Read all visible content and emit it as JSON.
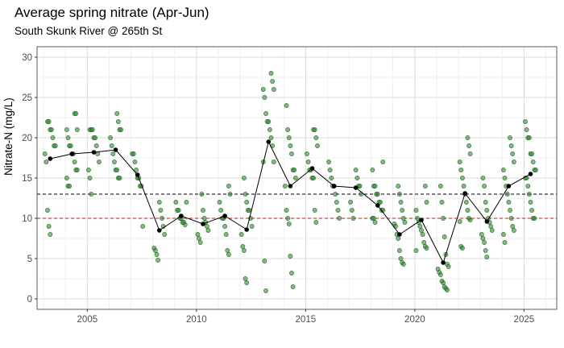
{
  "chart_data": {
    "type": "scatter",
    "title": "Average spring nitrate (Apr-Jun)",
    "subtitle": "South Skunk River @ 265th St",
    "xlabel": "",
    "ylabel": "Nitrate-N (mg/L)",
    "xlim": [
      2002.7,
      2026.5
    ],
    "ylim": [
      -1.3,
      31.3
    ],
    "xticks": [
      2005,
      2010,
      2015,
      2020,
      2025
    ],
    "yticks": [
      0,
      5,
      10,
      15,
      20,
      25,
      30
    ],
    "grid": true,
    "legend": "none",
    "colors": {
      "points": "#2e8b2e",
      "points_edge": "#1f5f1f",
      "mean": "#000000",
      "ref_black": "#000000",
      "ref_red": "#b22222"
    },
    "reference_lines": [
      {
        "y": 13,
        "color": "#000000",
        "style": "dashed"
      },
      {
        "y": 10,
        "color": "#b22222",
        "style": "dashed"
      }
    ],
    "samples": [
      {
        "year": 2003,
        "values": [
          22,
          22,
          21,
          21,
          20,
          19,
          19,
          18,
          17,
          11,
          9,
          8
        ]
      },
      {
        "year": 2004,
        "values": [
          23,
          23,
          21,
          21,
          20,
          19,
          19,
          18,
          18,
          17,
          16,
          16,
          15,
          14,
          14
        ]
      },
      {
        "year": 2005,
        "values": [
          21,
          21,
          21,
          20,
          20,
          19,
          18,
          17,
          16,
          15,
          13
        ]
      },
      {
        "year": 2006,
        "values": [
          23,
          22,
          21,
          21,
          20,
          19,
          18,
          17,
          16,
          16,
          15,
          15
        ]
      },
      {
        "year": 2007,
        "values": [
          18,
          18,
          17,
          16,
          15,
          15,
          14,
          14,
          9
        ]
      },
      {
        "year": 2008,
        "values": [
          12,
          11,
          10,
          9,
          8,
          6.3,
          6,
          5.5,
          4.8
        ]
      },
      {
        "year": 2009,
        "values": [
          12,
          12,
          11,
          11,
          10,
          10,
          9.5,
          9.5,
          9.2
        ]
      },
      {
        "year": 2010,
        "values": [
          13,
          11,
          10,
          9.5,
          9,
          8.5,
          8,
          7.5,
          7
        ]
      },
      {
        "year": 2011,
        "values": [
          14,
          13,
          12,
          11,
          10,
          10,
          9,
          8,
          6,
          5.5
        ]
      },
      {
        "year": 2012,
        "values": [
          15,
          13,
          12,
          11,
          11,
          10,
          9,
          8,
          6.5,
          6,
          2.5,
          2
        ]
      },
      {
        "year": 2013,
        "values": [
          28,
          27,
          26,
          26,
          25,
          23,
          22,
          22,
          21,
          20,
          19,
          17,
          17,
          4.7,
          1
        ]
      },
      {
        "year": 2014,
        "values": [
          24,
          21,
          20,
          19,
          18,
          16,
          16,
          15,
          14,
          11,
          10,
          9.3,
          5.3,
          3.2,
          1.5
        ]
      },
      {
        "year": 2015,
        "values": [
          21,
          21,
          20,
          19,
          18,
          17,
          16,
          16,
          15,
          15,
          11,
          9.5
        ]
      },
      {
        "year": 2016,
        "values": [
          17,
          16,
          15,
          14,
          14,
          13,
          12,
          11,
          10
        ]
      },
      {
        "year": 2017,
        "values": [
          16,
          15,
          14,
          14,
          13,
          12,
          11,
          10
        ]
      },
      {
        "year": 2018,
        "values": [
          17,
          16,
          14,
          14,
          13,
          13,
          12,
          12,
          11,
          11,
          10,
          10,
          9.5
        ]
      },
      {
        "year": 2019,
        "values": [
          14,
          13,
          12,
          11,
          10,
          9.5,
          9.3,
          9,
          8,
          7.5,
          6,
          5,
          4.5,
          4.3
        ]
      },
      {
        "year": 2020,
        "values": [
          14,
          12,
          11,
          10,
          9.5,
          9,
          8.5,
          8,
          7,
          6.5,
          6.3,
          6
        ]
      },
      {
        "year": 2021,
        "values": [
          14,
          12,
          10,
          7.7,
          5.5,
          4.3,
          4,
          3.7,
          3.3,
          3,
          2.2,
          2,
          1.5,
          1.3,
          1.1
        ]
      },
      {
        "year": 2022,
        "values": [
          20,
          19,
          18,
          17,
          16,
          15,
          14,
          13,
          12,
          11,
          10,
          9.8,
          9.6,
          6.5,
          6.3
        ]
      },
      {
        "year": 2023,
        "values": [
          15,
          14,
          12,
          11,
          10,
          9.5,
          9,
          8.5,
          8,
          7.5,
          7,
          6,
          5.2
        ]
      },
      {
        "year": 2024,
        "values": [
          20,
          19,
          18,
          17,
          16,
          15,
          14,
          13,
          12,
          11,
          10,
          9,
          8.5,
          8,
          7
        ]
      },
      {
        "year": 2025,
        "values": [
          22,
          21,
          20,
          20,
          18,
          18,
          17,
          16,
          16,
          15,
          15,
          14,
          13,
          12,
          11,
          10,
          10
        ]
      }
    ],
    "mean_series": {
      "x": [
        2003,
        2004,
        2005,
        2006,
        2007,
        2008,
        2009,
        2010,
        2011,
        2012,
        2013,
        2014,
        2015,
        2016,
        2017,
        2018,
        2019,
        2020,
        2021,
        2022,
        2023,
        2024,
        2025
      ],
      "y": [
        17.4,
        18.0,
        18.2,
        18.5,
        15.4,
        8.5,
        10.3,
        9.3,
        10.3,
        8.6,
        19.5,
        14.0,
        16.2,
        14.0,
        13.8,
        11.6,
        8.0,
        9.8,
        4.5,
        13.1,
        9.6,
        14.0,
        15.5
      ]
    }
  }
}
